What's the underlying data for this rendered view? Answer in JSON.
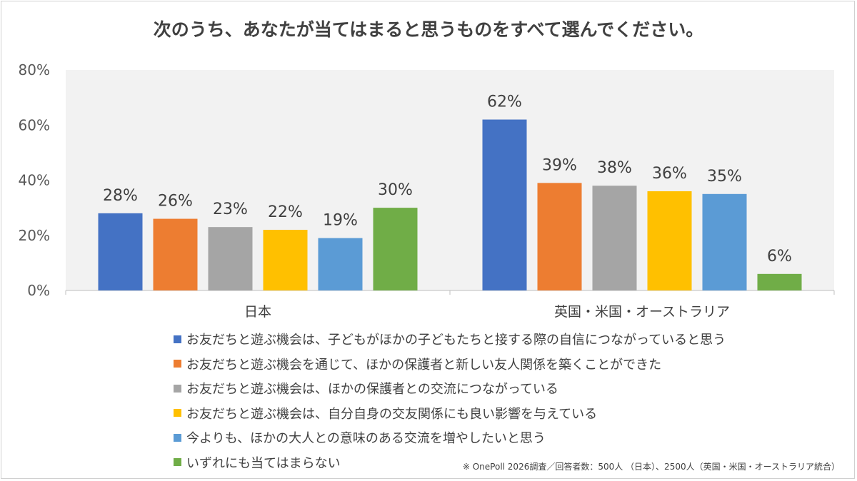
{
  "title": "次のうち、あなたが当てはまると思うものをすべて選んでください。",
  "footnote": "※ OnePoll 2026調査／回答者数：500人 （日本）、2500人（英国・米国・オーストラリア統合）",
  "chart_data": {
    "type": "bar",
    "categories": [
      "日本",
      "英国・米国・オーストラリア"
    ],
    "ylim": [
      0,
      80
    ],
    "yticks": [
      0,
      20,
      40,
      60,
      80
    ],
    "ytick_labels": [
      "0%",
      "20%",
      "40%",
      "60%",
      "80%"
    ],
    "value_suffix": "%",
    "grid": false,
    "plot_background": "#f2f2f2",
    "legend_position": "bottom",
    "series": [
      {
        "name": "お友だちと遊ぶ機会は、子どもがほかの子どもたちと接する際の自信につながっていると思う",
        "color": "#4472c4",
        "values": [
          28,
          62
        ]
      },
      {
        "name": "お友だちと遊ぶ機会を通じて、ほかの保護者と新しい友人関係を築くことができた",
        "color": "#ed7d31",
        "values": [
          26,
          39
        ]
      },
      {
        "name": "お友だちと遊ぶ機会は、ほかの保護者との交流につながっている",
        "color": "#a5a5a5",
        "values": [
          23,
          38
        ]
      },
      {
        "name": "お友だちと遊ぶ機会は、自分自身の交友関係にも良い影響を与えている",
        "color": "#ffc000",
        "values": [
          22,
          36
        ]
      },
      {
        "name": "今よりも、ほかの大人との意味のある交流を増やしたいと思う",
        "color": "#5b9bd5",
        "values": [
          19,
          35
        ]
      },
      {
        "name": "いずれにも当てはまらない",
        "color": "#70ad47",
        "values": [
          30,
          6
        ]
      }
    ]
  }
}
